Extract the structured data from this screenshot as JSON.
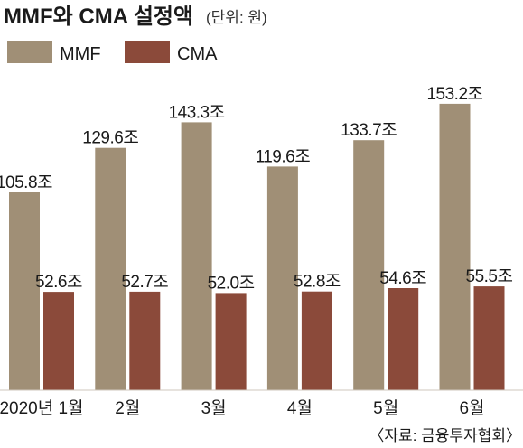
{
  "chart_data": {
    "type": "bar",
    "title": "MMF와 CMA 설정액",
    "unit_note": "(단위: 원)",
    "source": "〈자료: 금융투자협회〉",
    "categories": [
      "2020년 1월",
      "2월",
      "3월",
      "4월",
      "5월",
      "6월"
    ],
    "series": [
      {
        "name": "MMF",
        "color": "#a08f76",
        "values": [
          105.8,
          129.6,
          143.3,
          119.6,
          133.7,
          153.2
        ],
        "labels": [
          "105.8조",
          "129.6조",
          "143.3조",
          "119.6조",
          "133.7조",
          "153.2조"
        ]
      },
      {
        "name": "CMA",
        "color": "#8b4a3a",
        "values": [
          52.6,
          52.7,
          52.0,
          52.8,
          54.6,
          55.5
        ],
        "labels": [
          "52.6조",
          "52.7조",
          "52.0조",
          "52.8조",
          "54.6조",
          "55.5조"
        ]
      }
    ],
    "legend": "top-left",
    "grid": false,
    "yaxis_visible": false
  }
}
